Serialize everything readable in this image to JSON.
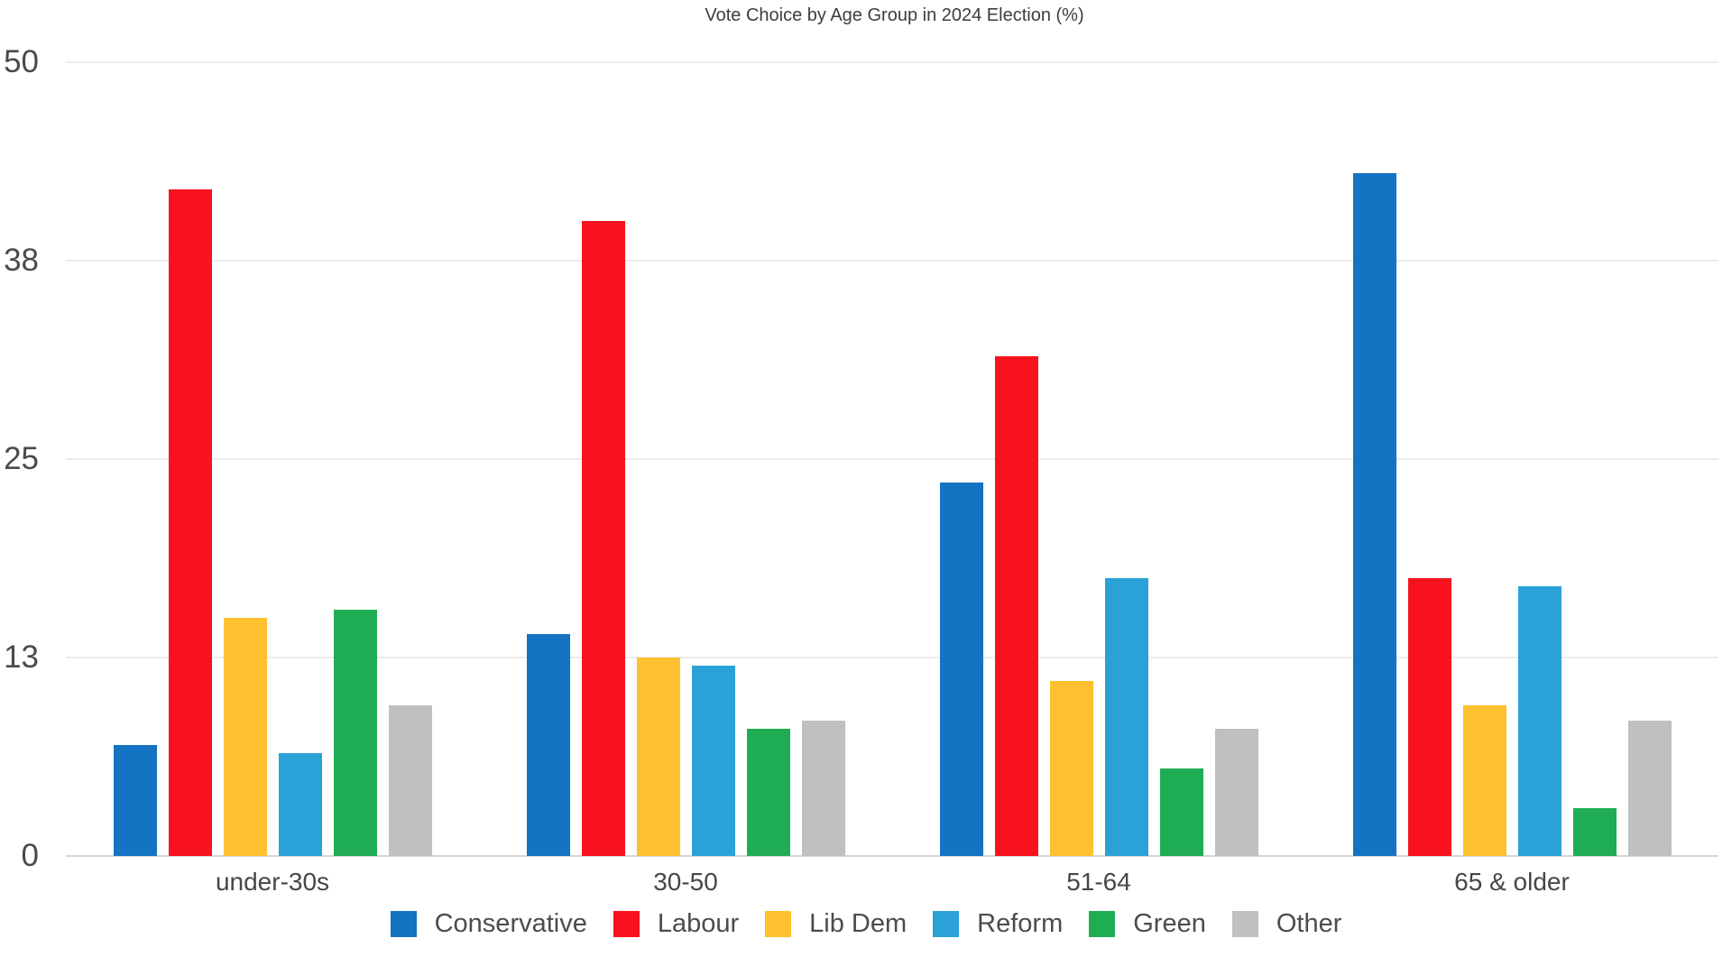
{
  "title": "Vote Choice by Age Group in 2024 Election (%)",
  "chart_data": {
    "type": "bar",
    "title": "Vote Choice by Age Group in 2024 Election (%)",
    "xlabel": "",
    "ylabel": "",
    "categories": [
      "under-30s",
      "30-50",
      "51-64",
      "65 & older"
    ],
    "series": [
      {
        "name": "Conservative",
        "color": "#1473c2",
        "values": [
          7,
          14,
          23.5,
          43
        ]
      },
      {
        "name": "Labour",
        "color": "#f8121d",
        "values": [
          42,
          40,
          31.5,
          17.5
        ]
      },
      {
        "name": "Lib Dem",
        "color": "#fdc02f",
        "values": [
          15,
          12.5,
          11,
          9.5
        ]
      },
      {
        "name": "Reform",
        "color": "#2aa2d7",
        "values": [
          6.5,
          12,
          17.5,
          17
        ]
      },
      {
        "name": "Green",
        "color": "#1fad54",
        "values": [
          15.5,
          8,
          5.5,
          3
        ]
      },
      {
        "name": "Other",
        "color": "#c1c0c0",
        "values": [
          9.5,
          8.5,
          8,
          8.5
        ]
      }
    ],
    "ylim": [
      0,
      50
    ],
    "yticks": [
      {
        "value": 0,
        "label": "0"
      },
      {
        "value": 12.5,
        "label": "13"
      },
      {
        "value": 25,
        "label": "25"
      },
      {
        "value": 37.5,
        "label": "38"
      },
      {
        "value": 50,
        "label": "50"
      }
    ],
    "grid": true,
    "legend_position": "bottom",
    "background_color": "#ffffff",
    "gridline_color": "#ececec",
    "axis_text_color": "#4a4a4a"
  }
}
